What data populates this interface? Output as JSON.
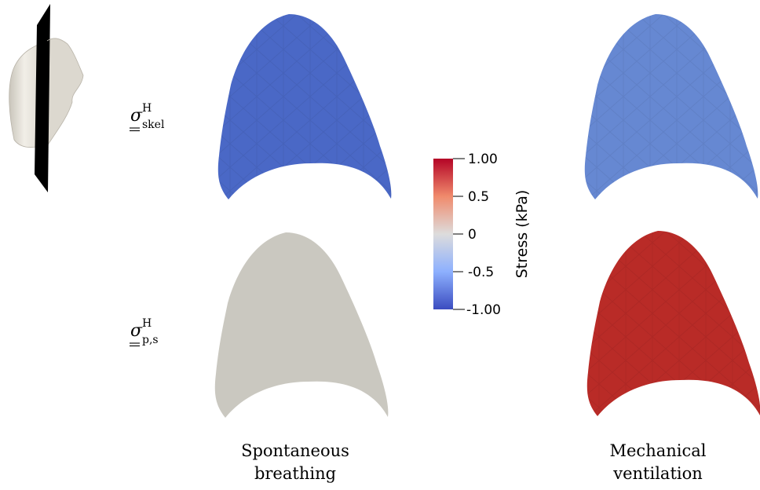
{
  "colors": {
    "skel_spontaneous": "#4a68c6",
    "skel_mechanical": "#6688d2",
    "ps_spontaneous": "#cac8c0",
    "ps_mechanical": "#b92b27",
    "colorbar_top": "#b40426",
    "colorbar_mid": "#dddcdc",
    "colorbar_bottom": "#3b4cc0",
    "lung_model": "#e9e6de",
    "cut_plane": "#000000"
  },
  "rows": [
    {
      "symbol": "σ",
      "sup": "H",
      "sub": "skel"
    },
    {
      "symbol": "σ",
      "sup": "H",
      "sub": "p,s"
    }
  ],
  "columns": [
    {
      "line1": "Spontaneous",
      "line2": "breathing"
    },
    {
      "line1": "Mechanical",
      "line2": "ventilation"
    }
  ],
  "colorbar": {
    "title": "Stress (kPa)",
    "ticks": [
      "1.00",
      "0.5",
      "0",
      "-0.5",
      "-1.00"
    ],
    "tick_values": [
      1.0,
      0.5,
      0.0,
      -0.5,
      -1.0
    ],
    "range": [
      -1.0,
      1.0
    ]
  },
  "panels": [
    {
      "row": 0,
      "col": 0,
      "value": -0.85,
      "icon": "lung-slice-icon"
    },
    {
      "row": 0,
      "col": 1,
      "value": -0.65,
      "icon": "lung-slice-icon"
    },
    {
      "row": 1,
      "col": 0,
      "value": 0.0,
      "icon": "lung-slice-icon"
    },
    {
      "row": 1,
      "col": 1,
      "value": 0.9,
      "icon": "lung-slice-icon"
    }
  ]
}
